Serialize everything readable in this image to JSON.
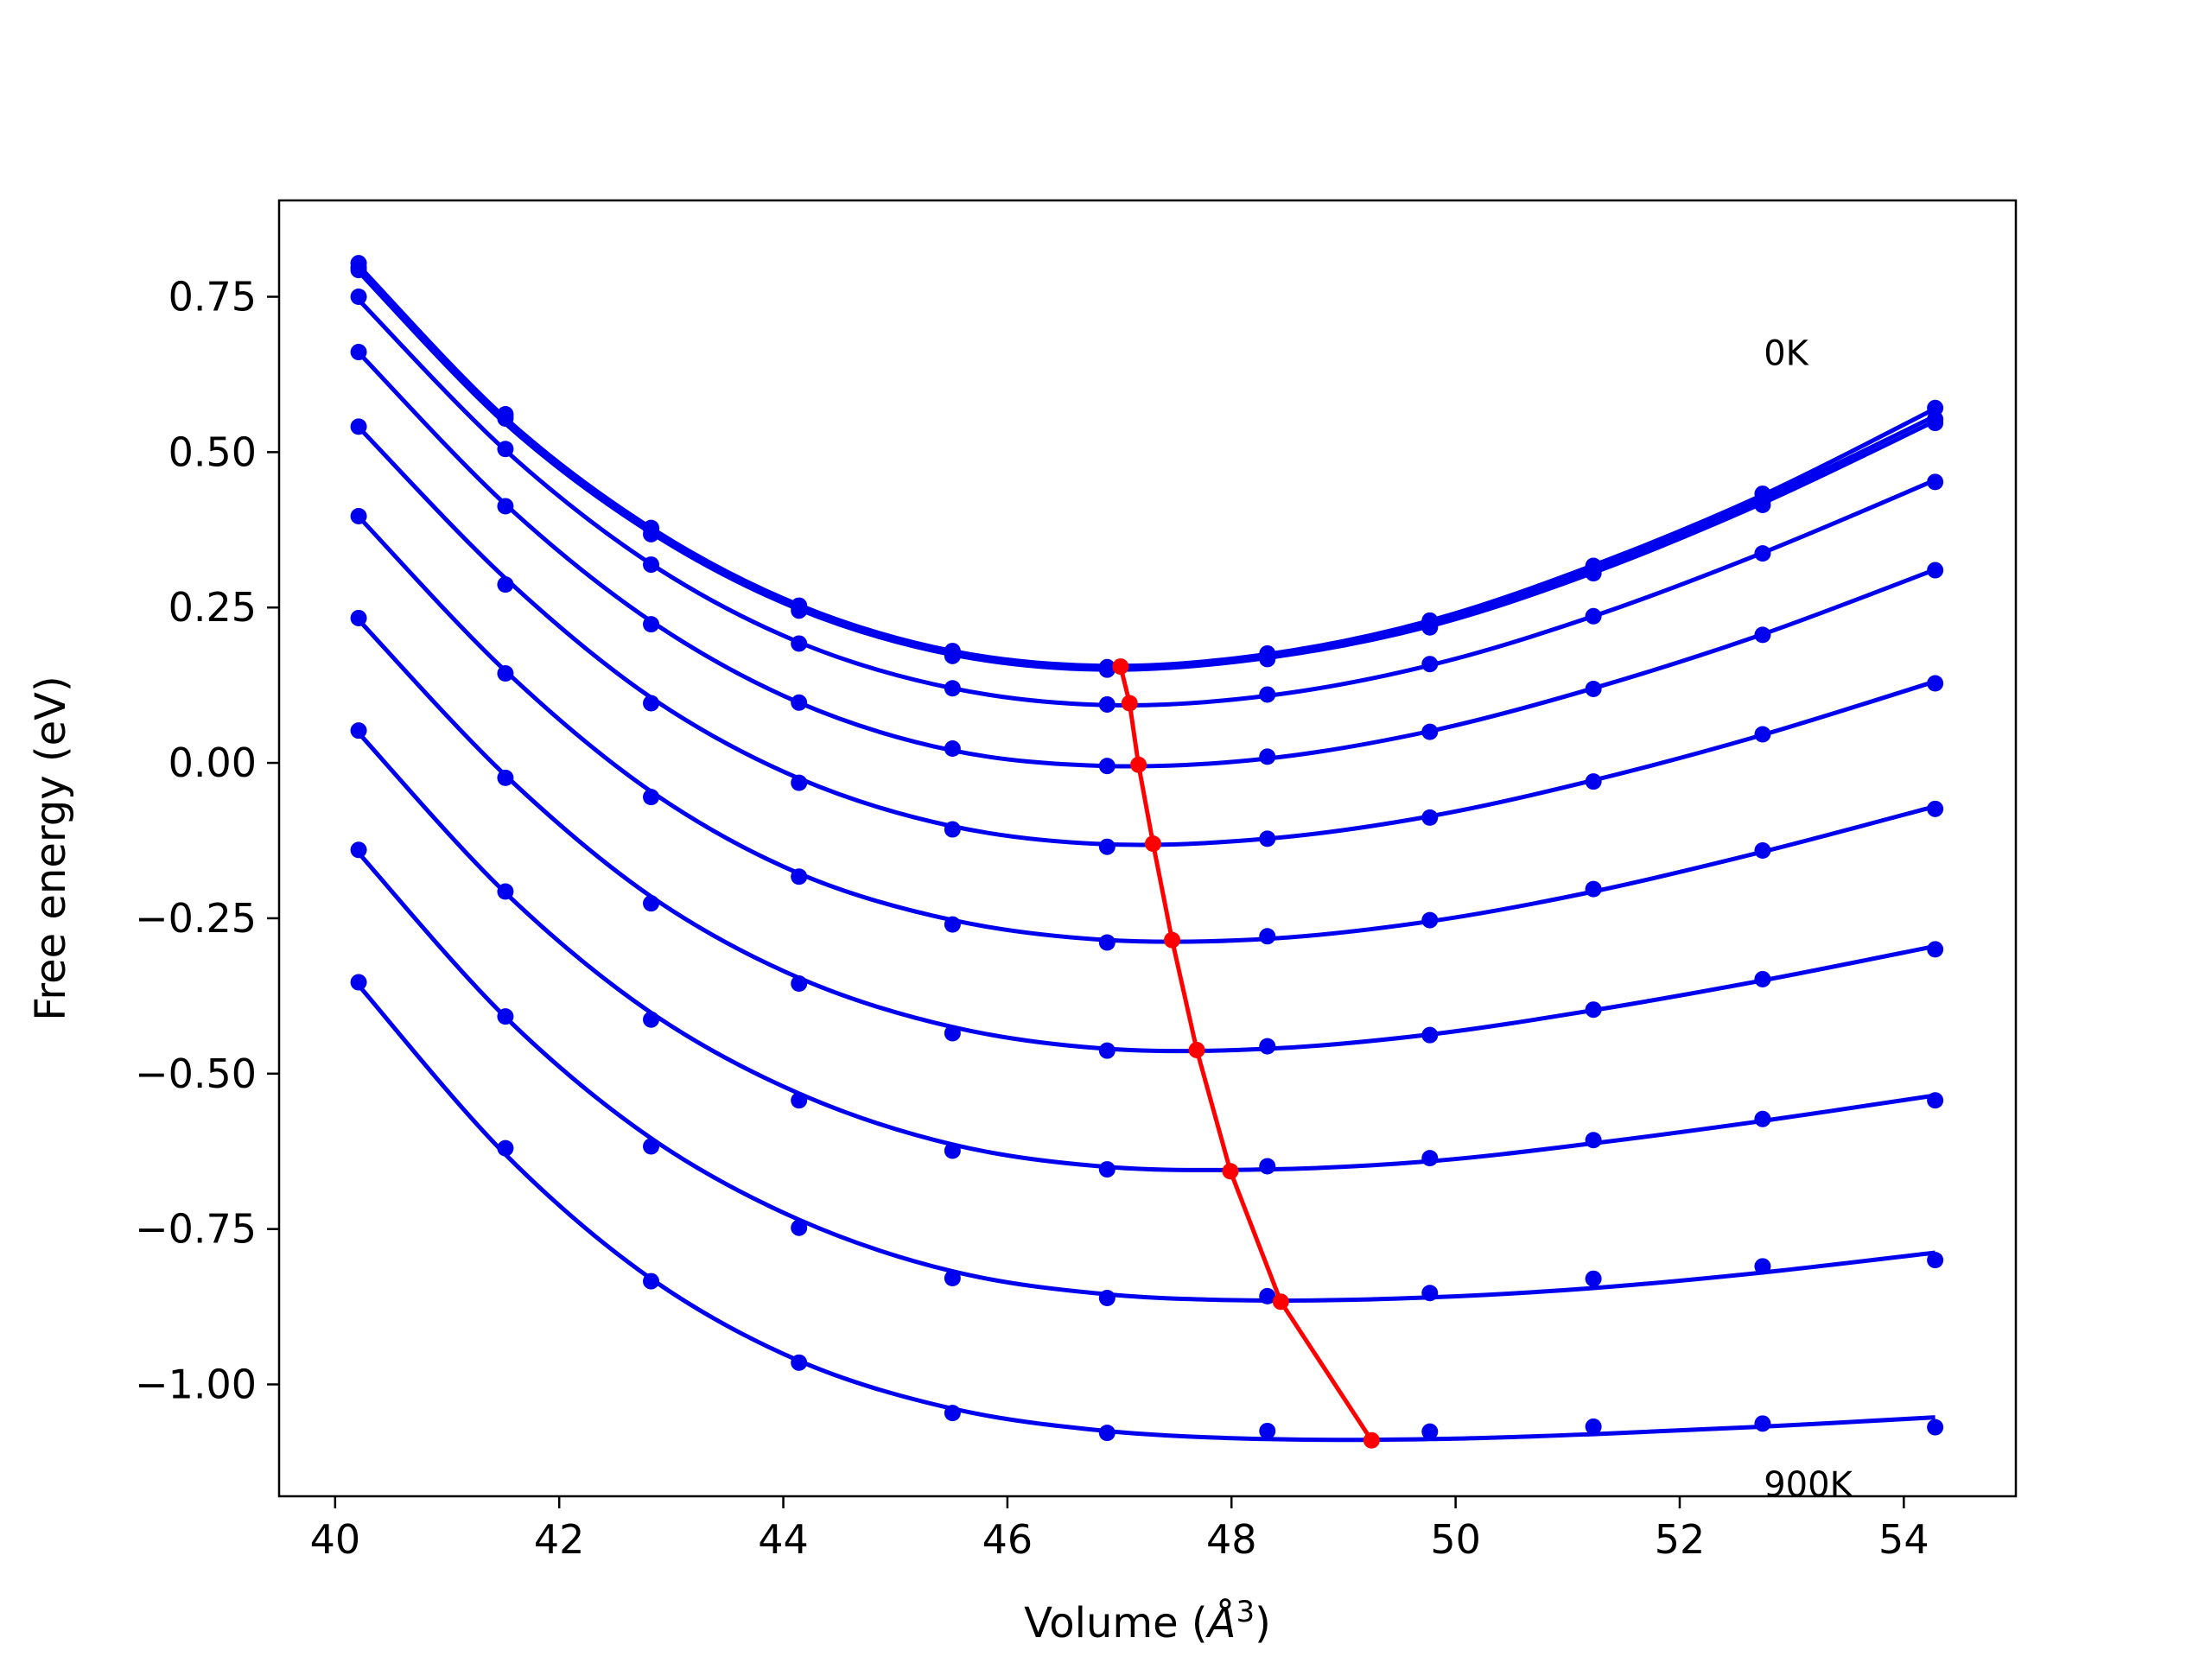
{
  "chart_data": {
    "type": "line",
    "title": "",
    "xlabel": "Volume (",
    "xlabel_unit": "Å",
    "xlabel_sup": "3",
    "xlabel_close": ")",
    "ylabel": "Free energy (eV)",
    "xlim": [
      39.5,
      55.0
    ],
    "ylim": [
      -1.18,
      0.905
    ],
    "x_ticks": [
      40,
      42,
      44,
      46,
      48,
      50,
      52,
      54
    ],
    "x_tick_labels": [
      "40",
      "42",
      "44",
      "46",
      "48",
      "50",
      "52",
      "54"
    ],
    "y_ticks": [
      0.75,
      0.5,
      0.25,
      0.0,
      -0.25,
      -0.5,
      -0.75,
      -1.0
    ],
    "y_tick_labels": [
      "0.75",
      "0.50",
      "0.25",
      "0.00",
      "−0.25",
      "−0.50",
      "−0.75",
      "−1.00"
    ],
    "grid": false,
    "annotations": [
      {
        "text": "0K",
        "x": 52.75,
        "y": 0.64
      },
      {
        "text": "900K",
        "x": 52.75,
        "y": -1.18
      }
    ],
    "volumes": [
      40.21,
      41.52,
      42.82,
      44.14,
      45.51,
      46.89,
      48.32,
      49.77,
      51.23,
      52.74,
      54.28
    ],
    "series": [
      {
        "color": "#0000ee",
        "points": [
          0.804,
          0.561,
          0.378,
          0.253,
          0.18,
          0.154,
          0.176,
          0.229,
          0.317,
          0.433,
          0.571
        ],
        "fit": [
          0.8,
          0.555,
          0.378,
          0.254,
          0.18,
          0.156,
          0.175,
          0.229,
          0.318,
          0.431,
          0.57
        ]
      },
      {
        "color": "#0000ee",
        "points": [
          0.797,
          0.558,
          0.376,
          0.25,
          0.177,
          0.153,
          0.174,
          0.222,
          0.311,
          0.421,
          0.553
        ],
        "fit": [
          0.795,
          0.55,
          0.374,
          0.251,
          0.178,
          0.154,
          0.173,
          0.225,
          0.311,
          0.425,
          0.558
        ]
      },
      {
        "color": "#0000ee",
        "points": [
          0.793,
          0.554,
          0.368,
          0.245,
          0.172,
          0.15,
          0.167,
          0.218,
          0.305,
          0.415,
          0.547
        ],
        "fit": [
          0.79,
          0.546,
          0.37,
          0.247,
          0.174,
          0.15,
          0.169,
          0.22,
          0.306,
          0.418,
          0.55
        ]
      },
      {
        "color": "#0000ee",
        "points": [
          0.75,
          0.505,
          0.319,
          0.192,
          0.12,
          0.094,
          0.11,
          0.159,
          0.236,
          0.337,
          0.452
        ],
        "fit": [
          0.745,
          0.503,
          0.32,
          0.194,
          0.12,
          0.093,
          0.108,
          0.157,
          0.236,
          0.338,
          0.455
        ]
      },
      {
        "color": "#0000ee",
        "points": [
          0.661,
          0.413,
          0.223,
          0.097,
          0.023,
          -0.005,
          0.01,
          0.05,
          0.119,
          0.206,
          0.31
        ],
        "fit": [
          0.66,
          0.416,
          0.228,
          0.097,
          0.02,
          -0.005,
          0.007,
          0.051,
          0.12,
          0.207,
          0.311
        ]
      },
      {
        "color": "#0000ee",
        "points": [
          0.541,
          0.287,
          0.096,
          -0.032,
          -0.107,
          -0.135,
          -0.122,
          -0.088,
          -0.03,
          0.046,
          0.128
        ],
        "fit": [
          0.54,
          0.297,
          0.105,
          -0.025,
          -0.102,
          -0.131,
          -0.122,
          -0.086,
          -0.028,
          0.045,
          0.131
        ]
      },
      {
        "color": "#0000ee",
        "points": [
          0.397,
          0.144,
          -0.055,
          -0.183,
          -0.26,
          -0.289,
          -0.279,
          -0.253,
          -0.203,
          -0.141,
          -0.074
        ],
        "fit": [
          0.396,
          0.148,
          -0.046,
          -0.178,
          -0.253,
          -0.285,
          -0.283,
          -0.255,
          -0.207,
          -0.143,
          -0.07
        ]
      },
      {
        "color": "#0000ee",
        "points": [
          0.233,
          -0.024,
          -0.226,
          -0.355,
          -0.435,
          -0.463,
          -0.456,
          -0.438,
          -0.397,
          -0.348,
          -0.3
        ],
        "fit": [
          0.23,
          -0.02,
          -0.215,
          -0.346,
          -0.425,
          -0.46,
          -0.46,
          -0.437,
          -0.398,
          -0.35,
          -0.295
        ]
      },
      {
        "color": "#0000ee",
        "points": [
          0.052,
          -0.207,
          -0.413,
          -0.543,
          -0.624,
          -0.654,
          -0.649,
          -0.636,
          -0.607,
          -0.573,
          -0.543
        ],
        "fit": [
          0.048,
          -0.209,
          -0.402,
          -0.532,
          -0.614,
          -0.65,
          -0.654,
          -0.641,
          -0.612,
          -0.576,
          -0.535
        ]
      },
      {
        "color": "#0000ee",
        "points": [
          -0.14,
          -0.408,
          -0.617,
          -0.748,
          -0.829,
          -0.861,
          -0.858,
          -0.853,
          -0.83,
          -0.81,
          -0.8
        ],
        "fit": [
          -0.145,
          -0.409,
          -0.604,
          -0.735,
          -0.818,
          -0.855,
          -0.865,
          -0.86,
          -0.845,
          -0.82,
          -0.788
        ]
      },
      {
        "color": "#0000ee",
        "points": [
          -0.353,
          -0.62,
          -0.834,
          -0.965,
          -1.046,
          -1.078,
          -1.075,
          -1.076,
          -1.068,
          -1.063,
          -1.069
        ],
        "fit": [
          -0.358,
          -0.63,
          -0.83,
          -0.962,
          -1.039,
          -1.075,
          -1.088,
          -1.088,
          -1.08,
          -1.068,
          -1.053
        ]
      }
    ],
    "minima_series": {
      "color": "#ff0000",
      "x": [
        47.01,
        47.09,
        47.17,
        47.3,
        47.47,
        47.69,
        47.99,
        48.44,
        49.25
      ],
      "y": [
        0.155,
        0.096,
        -0.003,
        -0.13,
        -0.285,
        -0.462,
        -0.657,
        -0.867,
        -1.09
      ]
    }
  }
}
